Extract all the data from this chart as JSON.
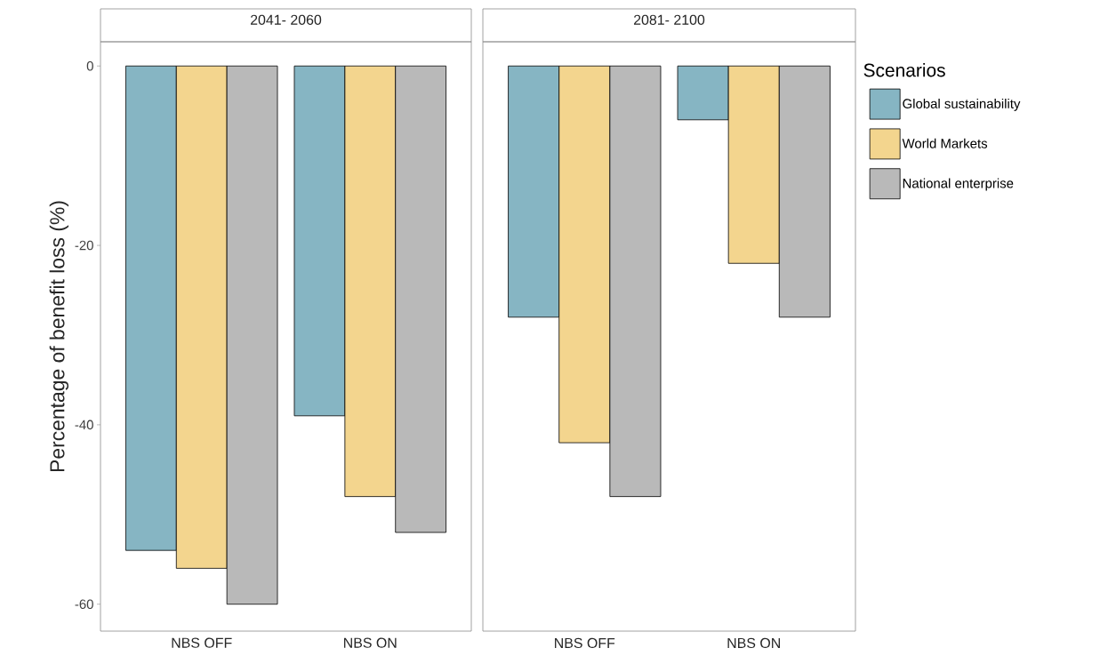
{
  "chart_data": [
    {
      "type": "bar",
      "title": "2041- 2060",
      "ylabel": "Percentage of benefit loss (%)",
      "categories": [
        "NBS OFF",
        "NBS ON"
      ],
      "series": [
        {
          "color": "#86b5c3",
          "values": [
            -54,
            -39
          ]
        },
        {
          "color": "#f3d58e",
          "values": [
            -56,
            -48
          ]
        },
        {
          "color": "#b9b9b9",
          "values": [
            -60,
            -52
          ]
        }
      ],
      "ylim": [
        -63,
        2.7
      ],
      "yticks": [
        -60,
        -40,
        -20,
        0
      ]
    },
    {
      "type": "bar",
      "title": "2081- 2100",
      "categories": [
        "NBS OFF",
        "NBS ON"
      ],
      "legend": "right",
      "legend_title": "Scenarios",
      "tick_labels": "x",
      "series": [
        {
          "name": "Global sustainability",
          "color": "#86b5c3",
          "values": [
            -28,
            -6
          ]
        },
        {
          "name": "World Markets",
          "color": "#f3d58e",
          "values": [
            -42,
            -22
          ]
        },
        {
          "name": "National enterprise",
          "color": "#b9b9b9",
          "values": [
            -48,
            -28
          ]
        }
      ],
      "ylim": [
        -63,
        2.7
      ],
      "yticks": [
        -60,
        -40,
        -20,
        0
      ]
    }
  ]
}
